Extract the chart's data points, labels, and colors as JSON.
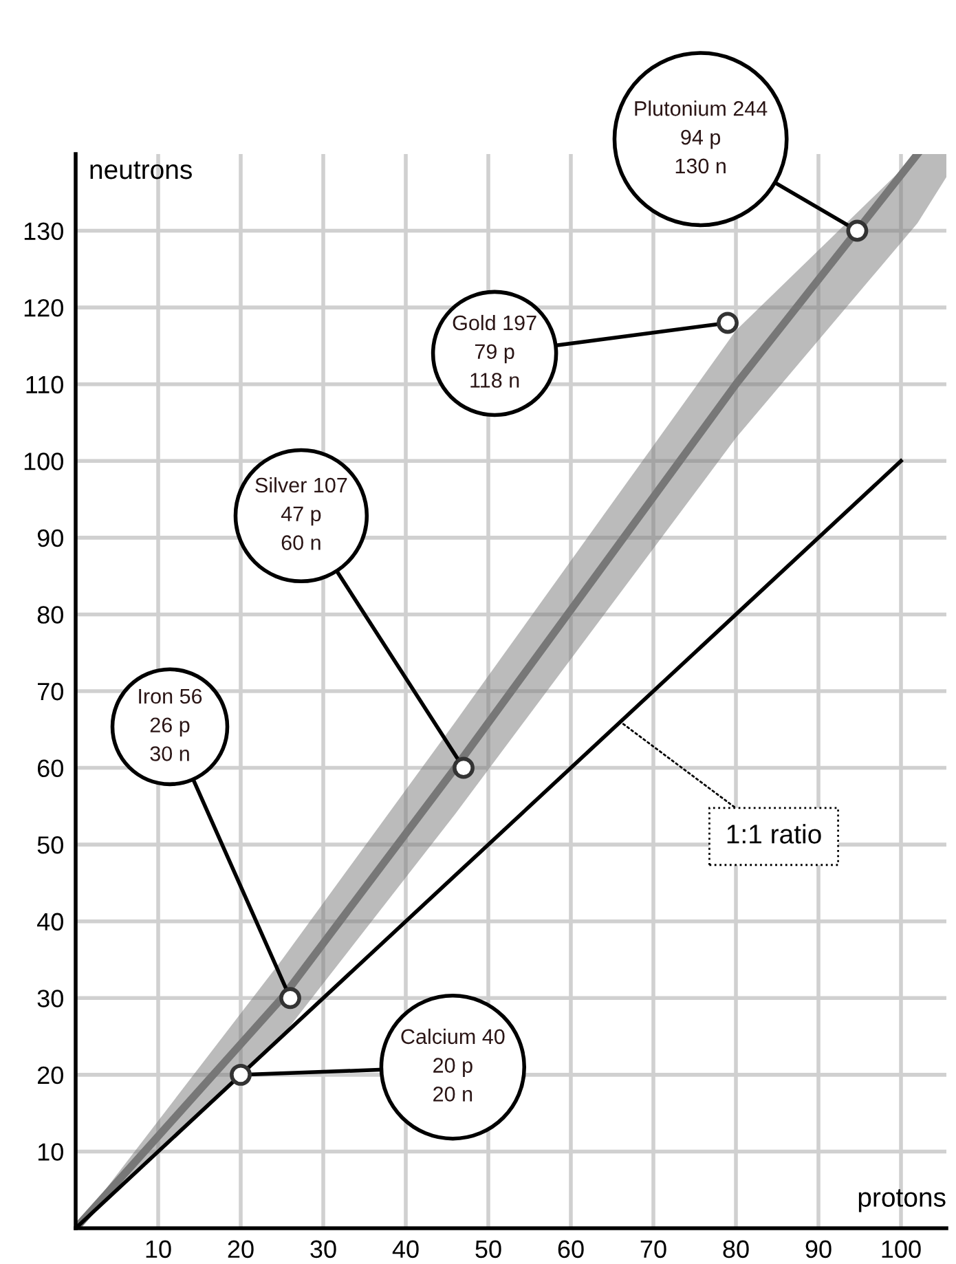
{
  "chart_data": {
    "type": "line",
    "xlabel": "protons",
    "ylabel": "neutrons",
    "xlim": [
      0,
      105.5
    ],
    "ylim": [
      0,
      140
    ],
    "xticks": [
      10,
      20,
      30,
      40,
      50,
      60,
      70,
      80,
      90,
      100
    ],
    "yticks": [
      10,
      20,
      30,
      40,
      50,
      60,
      70,
      80,
      90,
      100,
      110,
      120,
      130
    ],
    "grid": true,
    "series": [
      {
        "color": "#777777",
        "x": [
          0,
          25,
          46,
          80,
          102,
          105.5
        ],
        "values": [
          0,
          30,
          60,
          110,
          140,
          null
        ],
        "lower": [
          0,
          25,
          54,
          103,
          131,
          137
        ],
        "upper": [
          0,
          35,
          66,
          117,
          140,
          140
        ]
      },
      {
        "color": "#000000",
        "x": [
          0,
          100
        ],
        "values": [
          0,
          100
        ]
      },
      {
        "type": "scatter",
        "color": "#ffffff",
        "marker": "circle",
        "x": [
          20,
          26,
          47,
          79,
          94.7
        ],
        "values": [
          20,
          30,
          60,
          118,
          130
        ]
      }
    ],
    "annotations": [
      {
        "text": "Calcium 40\n20 p\n20 n",
        "x": 20,
        "y": 20
      },
      {
        "text": "Iron 56\n26 p\n30 n",
        "x": 26,
        "y": 30
      },
      {
        "text": "Silver 107\n47 p\n60 n",
        "x": 47,
        "y": 60
      },
      {
        "text": "Gold 197\n79 p\n118 n",
        "x": 79,
        "y": 118
      },
      {
        "text": "Plutonium 244\n94 p\n130 n",
        "x": 94.7,
        "y": 130
      },
      {
        "text": "1:1 ratio",
        "x": 66,
        "y": 66
      }
    ]
  }
}
